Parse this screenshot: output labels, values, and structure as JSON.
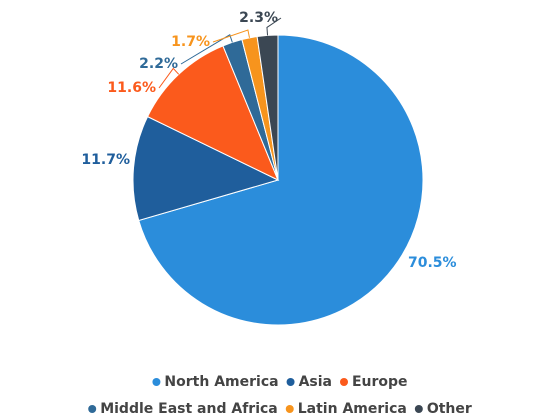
{
  "chart_data": {
    "type": "pie",
    "categories": [
      "North America",
      "Asia",
      "Europe",
      "Middle East and Africa",
      "Latin America",
      "Other"
    ],
    "values": [
      70.5,
      11.7,
      11.6,
      2.2,
      1.7,
      2.3
    ],
    "value_labels": [
      "70.5%",
      "11.7%",
      "11.6%",
      "2.2%",
      "1.7%",
      "2.3%"
    ],
    "colors": [
      "#2b8ddb",
      "#1f5e9c",
      "#fb5a1c",
      "#2f6a98",
      "#f7941d",
      "#3b4753"
    ],
    "legend": "bottom"
  }
}
